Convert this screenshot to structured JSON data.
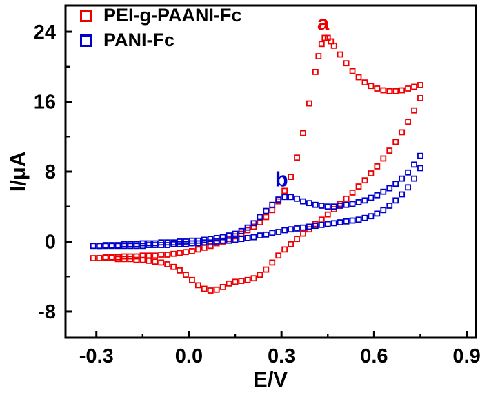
{
  "colors": {
    "background": "#ffffff",
    "axis": "#000000",
    "series_red": "#ee0000",
    "series_blue": "#0000cc"
  },
  "chart_data": {
    "type": "scatter",
    "subtype": "cyclic-voltammogram",
    "title": "",
    "xlabel": "E/V",
    "ylabel": "I/μA",
    "xlim": [
      -0.4,
      0.93
    ],
    "ylim": [
      -11,
      27
    ],
    "xticks": [
      -0.3,
      0.0,
      0.3,
      0.6,
      0.9
    ],
    "xtick_labels": [
      "-0.3",
      "0.0",
      "0.3",
      "0.6",
      "0.9"
    ],
    "yticks": [
      -8,
      0,
      8,
      16,
      24
    ],
    "ytick_labels": [
      "-8",
      "0",
      "8",
      "16",
      "24"
    ],
    "xminor": [
      -0.15,
      0.15,
      0.45,
      0.75
    ],
    "yminor": [
      -4,
      4,
      12,
      20
    ],
    "grid": false,
    "legend_position": "top-left",
    "marker": "open-square",
    "series": [
      {
        "name": "PEI-g-PAANI-Fc",
        "color": "#ee0000",
        "anodic_peak": {
          "x": 0.44,
          "y": 23.3
        },
        "cathodic_peak": {
          "x": 0.08,
          "y": -5.6
        },
        "points": [
          [
            -0.31,
            -1.9
          ],
          [
            -0.29,
            -1.9
          ],
          [
            -0.27,
            -1.8
          ],
          [
            -0.25,
            -1.8
          ],
          [
            -0.23,
            -1.8
          ],
          [
            -0.21,
            -1.7
          ],
          [
            -0.19,
            -1.7
          ],
          [
            -0.17,
            -1.7
          ],
          [
            -0.15,
            -1.6
          ],
          [
            -0.13,
            -1.6
          ],
          [
            -0.11,
            -1.6
          ],
          [
            -0.09,
            -1.5
          ],
          [
            -0.07,
            -1.5
          ],
          [
            -0.05,
            -1.4
          ],
          [
            -0.03,
            -1.3
          ],
          [
            -0.01,
            -1.2
          ],
          [
            0.01,
            -1.1
          ],
          [
            0.03,
            -0.9
          ],
          [
            0.05,
            -0.7
          ],
          [
            0.07,
            -0.5
          ],
          [
            0.09,
            -0.2
          ],
          [
            0.11,
            0
          ],
          [
            0.13,
            0.3
          ],
          [
            0.15,
            0.6
          ],
          [
            0.17,
            0.9
          ],
          [
            0.19,
            1.3
          ],
          [
            0.21,
            1.7
          ],
          [
            0.23,
            2.2
          ],
          [
            0.25,
            2.8
          ],
          [
            0.27,
            3.6
          ],
          [
            0.29,
            4.6
          ],
          [
            0.31,
            5.8
          ],
          [
            0.33,
            7.4
          ],
          [
            0.35,
            9.6
          ],
          [
            0.37,
            12.4
          ],
          [
            0.39,
            15.8
          ],
          [
            0.41,
            19.4
          ],
          [
            0.42,
            21.2
          ],
          [
            0.43,
            22.6
          ],
          [
            0.44,
            23.3
          ],
          [
            0.45,
            23.3
          ],
          [
            0.46,
            22.9
          ],
          [
            0.47,
            22.4
          ],
          [
            0.49,
            21.4
          ],
          [
            0.51,
            20.4
          ],
          [
            0.53,
            19.5
          ],
          [
            0.55,
            18.8
          ],
          [
            0.57,
            18.2
          ],
          [
            0.59,
            17.8
          ],
          [
            0.61,
            17.5
          ],
          [
            0.63,
            17.3
          ],
          [
            0.65,
            17.2
          ],
          [
            0.67,
            17.2
          ],
          [
            0.69,
            17.3
          ],
          [
            0.71,
            17.5
          ],
          [
            0.73,
            17.7
          ],
          [
            0.75,
            17.9
          ],
          [
            0.75,
            16.4
          ],
          [
            0.73,
            15
          ],
          [
            0.71,
            13.7
          ],
          [
            0.69,
            12.5
          ],
          [
            0.67,
            11.4
          ],
          [
            0.65,
            10.4
          ],
          [
            0.63,
            9.5
          ],
          [
            0.61,
            8.6
          ],
          [
            0.59,
            7.8
          ],
          [
            0.57,
            7
          ],
          [
            0.55,
            6.3
          ],
          [
            0.53,
            5.6
          ],
          [
            0.51,
            4.9
          ],
          [
            0.49,
            4.3
          ],
          [
            0.47,
            3.7
          ],
          [
            0.45,
            3.1
          ],
          [
            0.43,
            2.5
          ],
          [
            0.41,
            2
          ],
          [
            0.39,
            1.4
          ],
          [
            0.37,
            0.9
          ],
          [
            0.35,
            0.3
          ],
          [
            0.33,
            -0.3
          ],
          [
            0.31,
            -0.9
          ],
          [
            0.29,
            -1.6
          ],
          [
            0.27,
            -2.4
          ],
          [
            0.25,
            -3.2
          ],
          [
            0.23,
            -3.8
          ],
          [
            0.21,
            -4.2
          ],
          [
            0.19,
            -4.4
          ],
          [
            0.17,
            -4.5
          ],
          [
            0.15,
            -4.6
          ],
          [
            0.13,
            -4.8
          ],
          [
            0.11,
            -5.2
          ],
          [
            0.09,
            -5.5
          ],
          [
            0.07,
            -5.6
          ],
          [
            0.05,
            -5.4
          ],
          [
            0.03,
            -5
          ],
          [
            0.01,
            -4.4
          ],
          [
            -0.01,
            -3.8
          ],
          [
            -0.03,
            -3.3
          ],
          [
            -0.05,
            -2.9
          ],
          [
            -0.07,
            -2.6
          ],
          [
            -0.09,
            -2.4
          ],
          [
            -0.11,
            -2.3
          ],
          [
            -0.13,
            -2.2
          ],
          [
            -0.15,
            -2.1
          ],
          [
            -0.17,
            -2.1
          ],
          [
            -0.19,
            -2
          ],
          [
            -0.21,
            -2
          ],
          [
            -0.23,
            -2
          ],
          [
            -0.25,
            -1.9
          ],
          [
            -0.27,
            -1.9
          ],
          [
            -0.29,
            -1.9
          ]
        ]
      },
      {
        "name": "PANI-Fc",
        "color": "#0000cc",
        "anodic_peak": {
          "x": 0.31,
          "y": 5.1
        },
        "points": [
          [
            -0.31,
            -0.5
          ],
          [
            -0.29,
            -0.5
          ],
          [
            -0.27,
            -0.4
          ],
          [
            -0.25,
            -0.4
          ],
          [
            -0.23,
            -0.4
          ],
          [
            -0.21,
            -0.3
          ],
          [
            -0.19,
            -0.3
          ],
          [
            -0.17,
            -0.3
          ],
          [
            -0.15,
            -0.2
          ],
          [
            -0.13,
            -0.2
          ],
          [
            -0.11,
            -0.2
          ],
          [
            -0.09,
            -0.1
          ],
          [
            -0.07,
            -0.1
          ],
          [
            -0.05,
            -0.1
          ],
          [
            -0.03,
            0
          ],
          [
            -0.01,
            0
          ],
          [
            0.01,
            0.1
          ],
          [
            0.03,
            0.1
          ],
          [
            0.05,
            0.2
          ],
          [
            0.07,
            0.3
          ],
          [
            0.09,
            0.4
          ],
          [
            0.11,
            0.5
          ],
          [
            0.13,
            0.7
          ],
          [
            0.15,
            0.9
          ],
          [
            0.17,
            1.2
          ],
          [
            0.19,
            1.6
          ],
          [
            0.21,
            2.1
          ],
          [
            0.23,
            2.8
          ],
          [
            0.25,
            3.5
          ],
          [
            0.27,
            4.2
          ],
          [
            0.29,
            4.8
          ],
          [
            0.31,
            5.1
          ],
          [
            0.33,
            5.1
          ],
          [
            0.35,
            4.9
          ],
          [
            0.37,
            4.6
          ],
          [
            0.39,
            4.4
          ],
          [
            0.41,
            4.2
          ],
          [
            0.43,
            4.1
          ],
          [
            0.45,
            4
          ],
          [
            0.47,
            4
          ],
          [
            0.49,
            4.1
          ],
          [
            0.51,
            4.2
          ],
          [
            0.53,
            4.3
          ],
          [
            0.55,
            4.5
          ],
          [
            0.57,
            4.7
          ],
          [
            0.59,
            5
          ],
          [
            0.61,
            5.3
          ],
          [
            0.63,
            5.7
          ],
          [
            0.65,
            6.1
          ],
          [
            0.67,
            6.6
          ],
          [
            0.69,
            7.2
          ],
          [
            0.71,
            7.9
          ],
          [
            0.73,
            8.8
          ],
          [
            0.75,
            9.8
          ],
          [
            0.75,
            8.4
          ],
          [
            0.73,
            7.2
          ],
          [
            0.71,
            6.2
          ],
          [
            0.69,
            5.4
          ],
          [
            0.67,
            4.7
          ],
          [
            0.65,
            4.1
          ],
          [
            0.63,
            3.6
          ],
          [
            0.61,
            3.2
          ],
          [
            0.59,
            2.9
          ],
          [
            0.57,
            2.7
          ],
          [
            0.55,
            2.5
          ],
          [
            0.53,
            2.4
          ],
          [
            0.51,
            2.3
          ],
          [
            0.49,
            2.2
          ],
          [
            0.47,
            2.1
          ],
          [
            0.45,
            2
          ],
          [
            0.43,
            1.9
          ],
          [
            0.41,
            1.8
          ],
          [
            0.39,
            1.7
          ],
          [
            0.37,
            1.6
          ],
          [
            0.35,
            1.5
          ],
          [
            0.33,
            1.4
          ],
          [
            0.31,
            1.3
          ],
          [
            0.29,
            1.1
          ],
          [
            0.27,
            1
          ],
          [
            0.25,
            0.8
          ],
          [
            0.23,
            0.7
          ],
          [
            0.21,
            0.5
          ],
          [
            0.19,
            0.4
          ],
          [
            0.17,
            0.3
          ],
          [
            0.15,
            0.2
          ],
          [
            0.13,
            0.1
          ],
          [
            0.11,
            0.1
          ],
          [
            0.09,
            0
          ],
          [
            0.07,
            -0.1
          ],
          [
            0.05,
            -0.1
          ],
          [
            0.03,
            -0.2
          ],
          [
            0.01,
            -0.2
          ],
          [
            -0.01,
            -0.3
          ],
          [
            -0.03,
            -0.3
          ],
          [
            -0.05,
            -0.3
          ],
          [
            -0.07,
            -0.4
          ],
          [
            -0.09,
            -0.4
          ],
          [
            -0.11,
            -0.4
          ],
          [
            -0.13,
            -0.4
          ],
          [
            -0.15,
            -0.5
          ],
          [
            -0.17,
            -0.5
          ],
          [
            -0.19,
            -0.5
          ],
          [
            -0.21,
            -0.5
          ],
          [
            -0.23,
            -0.5
          ],
          [
            -0.25,
            -0.5
          ],
          [
            -0.27,
            -0.5
          ],
          [
            -0.29,
            -0.5
          ]
        ]
      }
    ],
    "annotations": [
      {
        "text": "a",
        "x": 0.435,
        "y": 24.2,
        "color": "#ee0000"
      },
      {
        "text": "b",
        "x": 0.3,
        "y": 6.3,
        "color": "#0000cc"
      }
    ]
  }
}
